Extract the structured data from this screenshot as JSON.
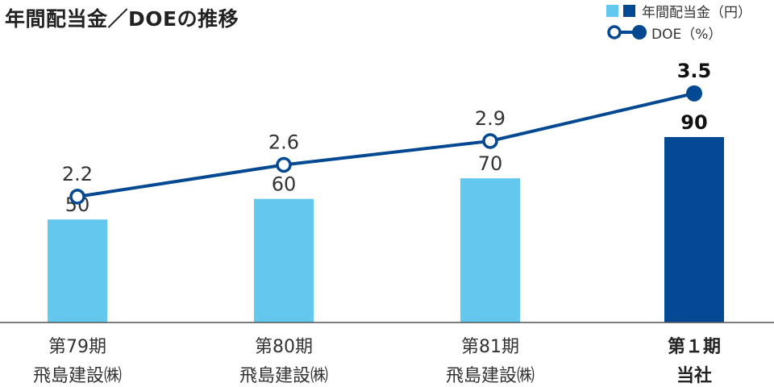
{
  "title": "年間配当金／DOEの推移",
  "legend": {
    "bar_label": "年間配当金（円）",
    "line_label": "DOE（%）"
  },
  "colors": {
    "bar": "#64c8ee",
    "bar_highlight": "#034892",
    "line": "#034892",
    "marker_fill": "#ffffff"
  },
  "chart_data": {
    "type": "bar",
    "title": "年間配当金／DOEの推移",
    "categories": [
      [
        "第79期",
        "飛島建設㈱"
      ],
      [
        "第80期",
        "飛島建設㈱"
      ],
      [
        "第81期",
        "飛島建設㈱"
      ],
      [
        "第１期",
        "当社"
      ]
    ],
    "highlight_index": 3,
    "series": [
      {
        "name": "年間配当金（円）",
        "type": "bar",
        "values": [
          50,
          60,
          70,
          90
        ]
      },
      {
        "name": "DOE（%）",
        "type": "line",
        "values": [
          2.2,
          2.6,
          2.9,
          3.5
        ]
      }
    ],
    "bar_value_labels": [
      "50",
      "60",
      "70",
      "90"
    ],
    "line_value_labels": [
      "2.2",
      "2.6",
      "2.9",
      "3.5"
    ],
    "ylim_bar": [
      0,
      90
    ],
    "ylim_line": [
      0,
      3.5
    ],
    "grid": false,
    "legend_position": "top-right"
  }
}
